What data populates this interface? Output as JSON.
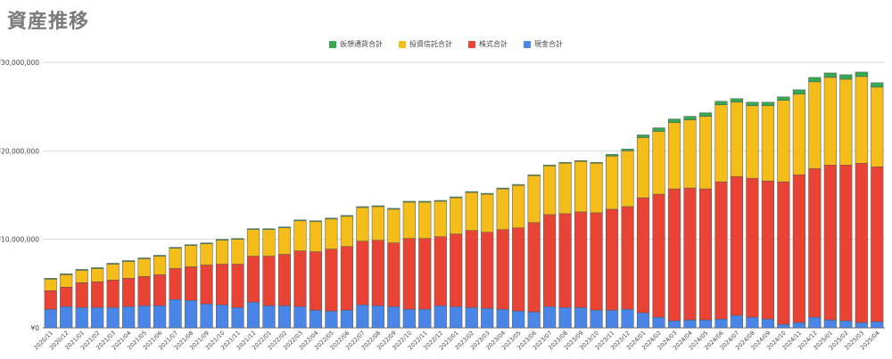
{
  "page": {
    "title": "資産推移"
  },
  "chart_data": {
    "type": "bar",
    "stacked": true,
    "title": "資産推移",
    "xlabel": "",
    "ylabel": "",
    "ylim": [
      0,
      30000000
    ],
    "yticks": [
      {
        "value": 0,
        "label": "¥0"
      },
      {
        "value": 10000000,
        "label": "¥10,000,000"
      },
      {
        "value": 20000000,
        "label": "¥20,000,000"
      },
      {
        "value": 30000000,
        "label": "¥30,000,000"
      }
    ],
    "grid": true,
    "legend_position": "top-center",
    "legend_order": [
      "仮想通貨合計",
      "投資信託合計",
      "株式合計",
      "現金合計"
    ],
    "categories": [
      "2020/11",
      "2020/12",
      "2021/01",
      "2021/02",
      "2021/03",
      "2021/04",
      "2021/05",
      "2021/06",
      "2021/07",
      "2021/08",
      "2021/09",
      "2021/10",
      "2021/11",
      "2021/12",
      "2022/01",
      "2022/02",
      "2022/03",
      "2022/04",
      "2022/05",
      "2022/06",
      "2022/07",
      "2022/08",
      "2022/09",
      "2022/10",
      "2022/11",
      "2022/12",
      "2023/01",
      "2023/02",
      "2023/03",
      "2023/04",
      "2023/05",
      "2023/06",
      "2023/07",
      "2023/08",
      "2023/09",
      "2023/10",
      "2023/11",
      "2023/12",
      "2024/01",
      "2024/02",
      "2024/03",
      "2024/04",
      "2024/05",
      "2024/06",
      "2024/07",
      "2024/08",
      "2024/09",
      "2024/10",
      "2024/11",
      "2024/12",
      "2025/01",
      "2025/02",
      "2025/03",
      "2025/04"
    ],
    "series": [
      {
        "name": "現金合計",
        "color": "#4a86e8",
        "values": [
          2100000,
          2400000,
          2300000,
          2300000,
          2300000,
          2400000,
          2500000,
          2500000,
          3200000,
          3100000,
          2700000,
          2600000,
          2300000,
          2900000,
          2500000,
          2500000,
          2400000,
          2000000,
          1900000,
          2000000,
          2600000,
          2500000,
          2400000,
          2100000,
          2100000,
          2500000,
          2400000,
          2300000,
          2200000,
          2100000,
          1900000,
          1800000,
          2400000,
          2300000,
          2300000,
          2000000,
          2000000,
          2100000,
          1700000,
          1200000,
          800000,
          900000,
          900000,
          1000000,
          1400000,
          1200000,
          1000000,
          400000,
          600000,
          1200000,
          900000,
          800000,
          600000,
          700000
        ]
      },
      {
        "name": "株式合計",
        "color": "#e84335",
        "values": [
          2100000,
          2200000,
          2800000,
          2900000,
          3100000,
          3200000,
          3300000,
          3500000,
          3500000,
          3800000,
          4400000,
          4600000,
          4900000,
          5200000,
          5600000,
          5800000,
          6300000,
          6600000,
          7000000,
          7200000,
          7200000,
          7400000,
          7200000,
          8000000,
          8000000,
          7800000,
          8200000,
          8700000,
          8600000,
          9000000,
          9400000,
          10100000,
          10400000,
          10600000,
          10800000,
          11000000,
          11400000,
          11600000,
          13000000,
          13900000,
          14900000,
          14900000,
          14800000,
          15500000,
          15700000,
          15700000,
          15600000,
          16100000,
          16700000,
          16800000,
          17500000,
          17600000,
          18000000,
          17500000
        ]
      },
      {
        "name": "投資信託合計",
        "color": "#f5bd19",
        "values": [
          1300000,
          1400000,
          1400000,
          1500000,
          1800000,
          1900000,
          2000000,
          2100000,
          2300000,
          2400000,
          2400000,
          2700000,
          2800000,
          3000000,
          3000000,
          3000000,
          3400000,
          3400000,
          3400000,
          3400000,
          3800000,
          3800000,
          3800000,
          4100000,
          4100000,
          4000000,
          4100000,
          4300000,
          4300000,
          4600000,
          4800000,
          5300000,
          5500000,
          5700000,
          5700000,
          5600000,
          6000000,
          6300000,
          6800000,
          7100000,
          7500000,
          7700000,
          8200000,
          8700000,
          8400000,
          8200000,
          8500000,
          9200000,
          9100000,
          9800000,
          9900000,
          9700000,
          9800000,
          9000000
        ]
      },
      {
        "name": "仮想通貨合計",
        "color": "#34a853",
        "values": [
          100000,
          100000,
          100000,
          100000,
          100000,
          100000,
          100000,
          100000,
          100000,
          100000,
          100000,
          100000,
          100000,
          100000,
          100000,
          100000,
          100000,
          100000,
          100000,
          100000,
          100000,
          100000,
          100000,
          100000,
          100000,
          100000,
          100000,
          100000,
          100000,
          100000,
          100000,
          100000,
          100000,
          100000,
          100000,
          100000,
          200000,
          200000,
          300000,
          400000,
          400000,
          400000,
          400000,
          400000,
          400000,
          400000,
          400000,
          400000,
          500000,
          500000,
          500000,
          500000,
          500000,
          500000
        ]
      }
    ]
  }
}
